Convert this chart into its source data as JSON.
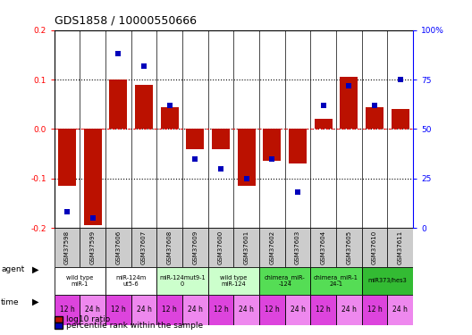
{
  "title": "GDS1858 / 10000550666",
  "samples": [
    "GSM37598",
    "GSM37599",
    "GSM37606",
    "GSM37607",
    "GSM37608",
    "GSM37609",
    "GSM37600",
    "GSM37601",
    "GSM37602",
    "GSM37603",
    "GSM37604",
    "GSM37605",
    "GSM37610",
    "GSM37611"
  ],
  "log10_ratio": [
    -0.115,
    -0.195,
    0.1,
    0.09,
    0.045,
    -0.04,
    -0.04,
    -0.115,
    -0.065,
    -0.07,
    0.02,
    0.105,
    0.045,
    0.04
  ],
  "percentile_rank": [
    8,
    5,
    88,
    82,
    62,
    35,
    30,
    25,
    35,
    18,
    62,
    72,
    62,
    75
  ],
  "ylim_left": [
    -0.2,
    0.2
  ],
  "ylim_right": [
    0,
    100
  ],
  "yticks_left": [
    -0.2,
    -0.1,
    0.0,
    0.1,
    0.2
  ],
  "yticks_right": [
    0,
    25,
    50,
    75,
    100
  ],
  "yticklabels_right": [
    "0",
    "25",
    "50",
    "75",
    "100%"
  ],
  "bar_color": "#bb1100",
  "dot_color": "#0000bb",
  "agent_groups": [
    {
      "label": "wild type\nmiR-1",
      "start": 0,
      "end": 2,
      "color": "#ffffff"
    },
    {
      "label": "miR-124m\nut5-6",
      "start": 2,
      "end": 4,
      "color": "#ffffff"
    },
    {
      "label": "miR-124mut9-1\n0",
      "start": 4,
      "end": 6,
      "color": "#ccffcc"
    },
    {
      "label": "wild type\nmiR-124",
      "start": 6,
      "end": 8,
      "color": "#ccffcc"
    },
    {
      "label": "chimera_miR-\n-124",
      "start": 8,
      "end": 10,
      "color": "#55dd55"
    },
    {
      "label": "chimera_miR-1\n24-1",
      "start": 10,
      "end": 12,
      "color": "#55dd55"
    },
    {
      "label": "miR373/hes3",
      "start": 12,
      "end": 14,
      "color": "#33bb33"
    }
  ],
  "time_labels": [
    "12 h",
    "24 h",
    "12 h",
    "24 h",
    "12 h",
    "24 h",
    "12 h",
    "24 h",
    "12 h",
    "24 h",
    "12 h",
    "24 h",
    "12 h",
    "24 h"
  ],
  "time_color_a": "#dd44dd",
  "time_color_b": "#ee88ee",
  "bg_color": "#ffffff",
  "dotted_values": [
    -0.1,
    0.0,
    0.1
  ],
  "label_fontsize": 6.5,
  "tick_fontsize": 6.5,
  "sample_fontsize": 5.5,
  "title_fontsize": 9
}
